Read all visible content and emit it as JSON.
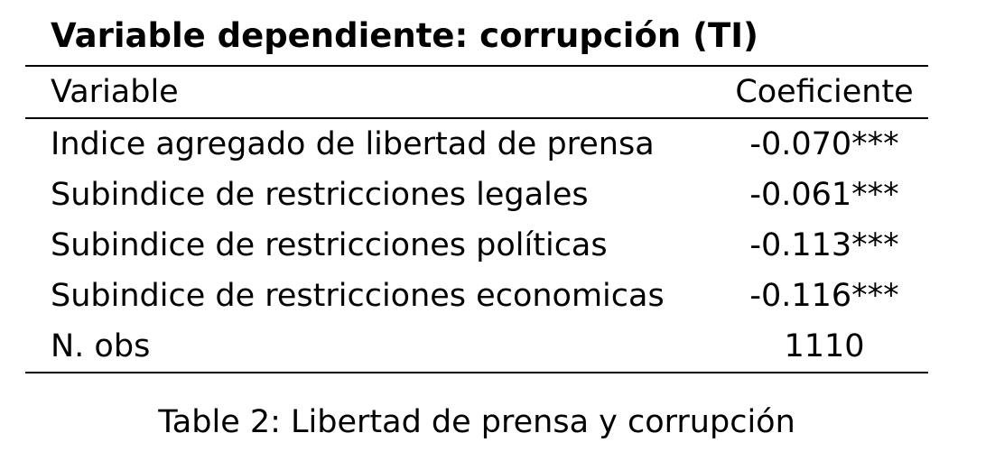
{
  "table": {
    "title": "Variable dependiente: corrupción (TI)",
    "header": {
      "variable": "Variable",
      "coefficient": "Coeficiente"
    },
    "rows": [
      {
        "variable": "Indice agregado de libertad de prensa",
        "coefficient": "-0.070***"
      },
      {
        "variable": "Subindice de restricciones legales",
        "coefficient": "-0.061***"
      },
      {
        "variable": "Subindice de restricciones políticas",
        "coefficient": "-0.113***"
      },
      {
        "variable": "Subindice de restricciones economicas",
        "coefficient": "-0.116***"
      },
      {
        "variable": "N. obs",
        "coefficient": "1110"
      }
    ]
  },
  "caption": "Table 2: Libertad de prensa y corrupción"
}
